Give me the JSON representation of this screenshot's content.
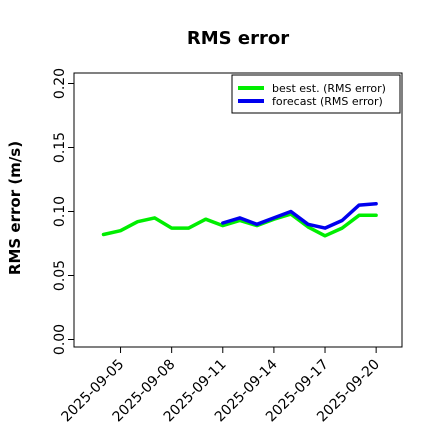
{
  "chart_data": {
    "type": "line",
    "title": "RMS error",
    "xlabel": "",
    "ylabel": "RMS error (m/s)",
    "ylim": [
      0,
      0.21
    ],
    "xlim": [
      "2025-09-03",
      "2025-09-20"
    ],
    "y_ticks": [
      "0.00",
      "0.05",
      "0.10",
      "0.15",
      "0.20"
    ],
    "x_ticks": [
      {
        "label": "2025-09-05",
        "color": "#000000"
      },
      {
        "label": "2025-09-08",
        "color": "#000000"
      },
      {
        "label": "2025-09-11",
        "color": "#228B22"
      },
      {
        "label": "2025-09-14",
        "color": "#000000"
      },
      {
        "label": "2025-09-17",
        "color": "#000000"
      },
      {
        "label": "2025-09-20",
        "color": "#000000"
      }
    ],
    "legend_position": "top-right",
    "grid": false,
    "series": [
      {
        "name": "best est. (RMS error)",
        "color": "#00ee00",
        "x": [
          "2025-09-04",
          "2025-09-05",
          "2025-09-06",
          "2025-09-07",
          "2025-09-08",
          "2025-09-09",
          "2025-09-10",
          "2025-09-11",
          "2025-09-12",
          "2025-09-13",
          "2025-09-14",
          "2025-09-15",
          "2025-09-16",
          "2025-09-17",
          "2025-09-18",
          "2025-09-19",
          "2025-09-20"
        ],
        "y": [
          0.082,
          0.085,
          0.092,
          0.095,
          0.087,
          0.087,
          0.094,
          0.089,
          0.093,
          0.089,
          0.094,
          0.098,
          0.088,
          0.081,
          0.087,
          0.097,
          0.097
        ]
      },
      {
        "name": "forecast (RMS error)",
        "color": "#0000ee",
        "x": [
          "2025-09-11",
          "2025-09-12",
          "2025-09-13",
          "2025-09-14",
          "2025-09-15",
          "2025-09-16",
          "2025-09-17",
          "2025-09-18",
          "2025-09-19",
          "2025-09-20"
        ],
        "y": [
          0.091,
          0.095,
          0.09,
          0.095,
          0.1,
          0.09,
          0.087,
          0.093,
          0.105,
          0.106
        ]
      }
    ]
  }
}
